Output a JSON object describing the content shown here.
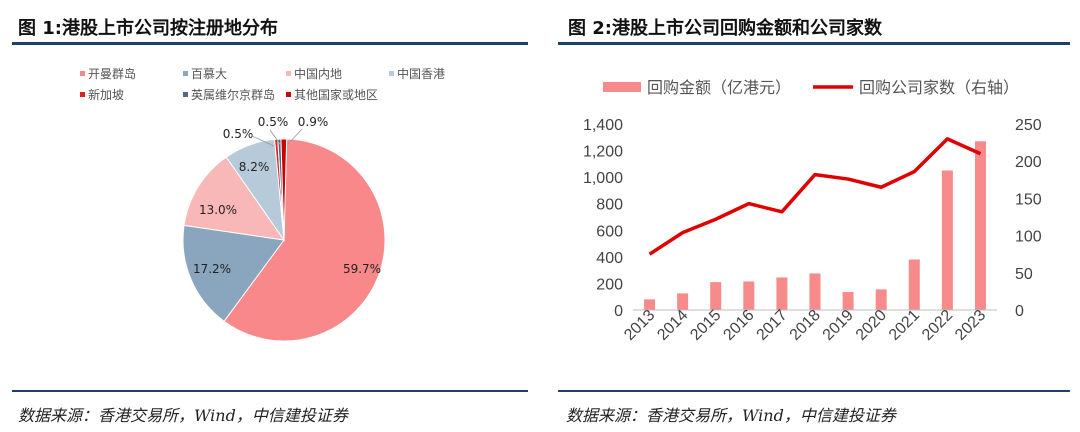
{
  "left_panel": {
    "title": "图 1:港股上市公司按注册地分布",
    "source": "数据来源：香港交易所，Wind，中信建投证券"
  },
  "right_panel": {
    "title": "图 2:港股上市公司回购金额和公司家数",
    "source": "数据来源：香港交易所，Wind，中信建投证券"
  },
  "chart_data": [
    {
      "type": "pie",
      "title": "",
      "legend_position": "top",
      "slices": [
        {
          "name": "开曼群岛",
          "value": 59.7,
          "label": "59.7%",
          "color": "#f8888a"
        },
        {
          "name": "百慕大",
          "value": 17.2,
          "label": "17.2%",
          "color": "#8aa6be"
        },
        {
          "name": "中国内地",
          "value": 13.0,
          "label": "13.0%",
          "color": "#f9b8b8"
        },
        {
          "name": "中国香港",
          "value": 8.2,
          "label": "8.2%",
          "color": "#b6cad9"
        },
        {
          "name": "新加坡",
          "value": 0.5,
          "label": "0.5%",
          "color": "#e02020"
        },
        {
          "name": "英属维尔京群岛",
          "value": 0.5,
          "label": "0.5%",
          "color": "#4f6b84"
        },
        {
          "name": "其他国家或地区",
          "value": 0.9,
          "label": "0.9%",
          "color": "#cc0000"
        }
      ]
    },
    {
      "type": "bar",
      "title": "",
      "legend_position": "top",
      "categories": [
        "2013",
        "2014",
        "2015",
        "2016",
        "2017",
        "2018",
        "2019",
        "2020",
        "2021",
        "2022",
        "2023"
      ],
      "series": [
        {
          "name": "回购金额（亿港元）",
          "type": "bar",
          "axis": "left",
          "color": "#f78a8a",
          "values": [
            80,
            125,
            210,
            215,
            245,
            275,
            135,
            155,
            380,
            1050,
            1270
          ]
        },
        {
          "name": "回购公司家数（右轴）",
          "type": "line",
          "axis": "right",
          "color": "#e00000",
          "values": [
            75,
            104,
            122,
            143,
            132,
            182,
            176,
            165,
            186,
            230,
            210
          ]
        }
      ],
      "y_left": {
        "min": 0,
        "max": 1400,
        "ticks": [
          "0",
          "200",
          "400",
          "600",
          "800",
          "1,000",
          "1,200",
          "1,400"
        ]
      },
      "y_right": {
        "min": 0,
        "max": 250,
        "ticks": [
          "0",
          "50",
          "100",
          "150",
          "200",
          "250"
        ]
      },
      "grid": false
    }
  ]
}
